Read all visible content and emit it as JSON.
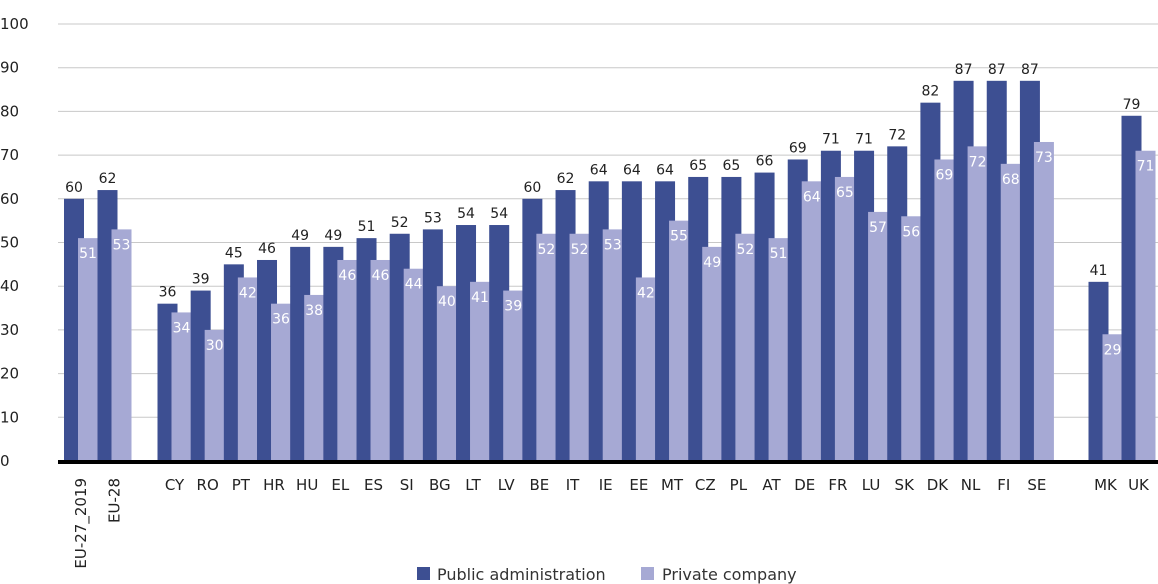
{
  "chart_data": {
    "type": "bar",
    "ylim": [
      0,
      100
    ],
    "yticks": [
      0,
      10,
      20,
      30,
      40,
      50,
      60,
      70,
      80,
      90,
      100
    ],
    "grid": true,
    "legend_placement": "bottom-center",
    "categories": [
      "EU-27_2019",
      "EU-28",
      "CY",
      "RO",
      "PT",
      "HR",
      "HU",
      "EL",
      "ES",
      "SI",
      "BG",
      "LT",
      "LV",
      "BE",
      "IT",
      "IE",
      "EE",
      "MT",
      "CZ",
      "PL",
      "AT",
      "DE",
      "FR",
      "LU",
      "SK",
      "DK",
      "NL",
      "FI",
      "SE",
      "MK",
      "UK"
    ],
    "series": [
      {
        "name": "Public administration",
        "color": "#3d4f92",
        "values": [
          60,
          62,
          36,
          39,
          45,
          46,
          49,
          49,
          51,
          52,
          53,
          54,
          54,
          60,
          62,
          64,
          64,
          64,
          65,
          65,
          66,
          69,
          71,
          71,
          72,
          82,
          87,
          87,
          87,
          41,
          79
        ]
      },
      {
        "name": "Private company",
        "color": "#a6a9d4",
        "values": [
          51,
          53,
          34,
          30,
          42,
          36,
          38,
          46,
          46,
          44,
          40,
          41,
          39,
          52,
          52,
          53,
          42,
          55,
          49,
          52,
          51,
          64,
          65,
          57,
          56,
          69,
          72,
          68,
          73,
          29,
          71
        ]
      }
    ]
  }
}
